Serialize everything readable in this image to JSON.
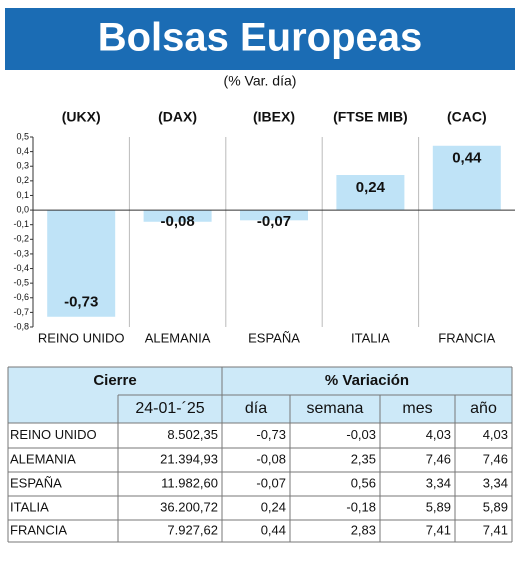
{
  "chart_data": {
    "type": "bar",
    "title": "Bolsas Europeas",
    "subtitle": "(% Var. día)",
    "indices": [
      "(UKX)",
      "(DAX)",
      "(IBEX)",
      "(FTSE MIB)",
      "(CAC)"
    ],
    "categories": [
      "REINO UNIDO",
      "ALEMANIA",
      "ESPAÑA",
      "ITALIA",
      "FRANCIA"
    ],
    "values": [
      -0.73,
      -0.08,
      -0.07,
      0.24,
      0.44
    ],
    "value_labels": [
      "-0,73",
      "-0,08",
      "-0,07",
      "0,24",
      "0,44"
    ],
    "color": "#bfe3f7",
    "ylim": [
      -0.8,
      0.5
    ],
    "yticks": [
      {
        "value": 0.5,
        "label": "0,5"
      },
      {
        "value": 0.4,
        "label": "0,4"
      },
      {
        "value": 0.3,
        "label": "0,3"
      },
      {
        "value": 0.2,
        "label": "0,2"
      },
      {
        "value": 0.1,
        "label": "0,1"
      },
      {
        "value": 0,
        "label": "0,0"
      },
      {
        "value": -0.1,
        "label": "-0,1"
      },
      {
        "value": -0.2,
        "label": "-0,2"
      },
      {
        "value": -0.3,
        "label": "-0,3"
      },
      {
        "value": -0.4,
        "label": "-0,4"
      },
      {
        "value": -0.5,
        "label": "-0,5"
      },
      {
        "value": -0.6,
        "label": "-0,6"
      },
      {
        "value": -0.7,
        "label": "-0,7"
      },
      {
        "value": -0.8,
        "label": "-0,8"
      }
    ]
  },
  "table": {
    "group_headers": [
      "Cierre",
      "% Variación"
    ],
    "headers": [
      "24-01-´25",
      "día",
      "semana",
      "mes",
      "año"
    ],
    "rows": [
      [
        "REINO UNIDO",
        "8.502,35",
        "-0,73",
        "-0,03",
        "4,03",
        "4,03"
      ],
      [
        "ALEMANIA",
        "21.394,93",
        "-0,08",
        "2,35",
        "7,46",
        "7,46"
      ],
      [
        "ESPAÑA",
        "11.982,60",
        "-0,07",
        "0,56",
        "3,34",
        "3,34"
      ],
      [
        "ITALIA",
        "36.200,72",
        "0,24",
        "-0,18",
        "5,89",
        "5,89"
      ],
      [
        "FRANCIA",
        "7.927,62",
        "0,44",
        "2,83",
        "7,41",
        "7,41"
      ]
    ]
  }
}
